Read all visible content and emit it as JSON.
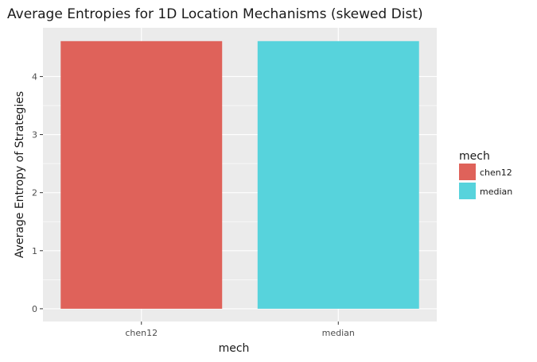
{
  "chart_data": {
    "type": "bar",
    "title": "Average Entropies for 1D Location Mechanisms (skewed Dist)",
    "xlabel": "mech",
    "ylabel": "Average Entropy of Strategies",
    "categories": [
      "chen12",
      "median"
    ],
    "values": [
      4.61,
      4.61
    ],
    "colors": [
      "#DF625A",
      "#57D3DC"
    ],
    "ylim": [
      -0.22,
      4.84
    ],
    "yticks": [
      0,
      1,
      2,
      3,
      4
    ],
    "grid": true,
    "panel_background": "#EBEBEB",
    "legend": {
      "title": "mech",
      "position": "right",
      "entries": [
        "chen12",
        "median"
      ]
    }
  }
}
